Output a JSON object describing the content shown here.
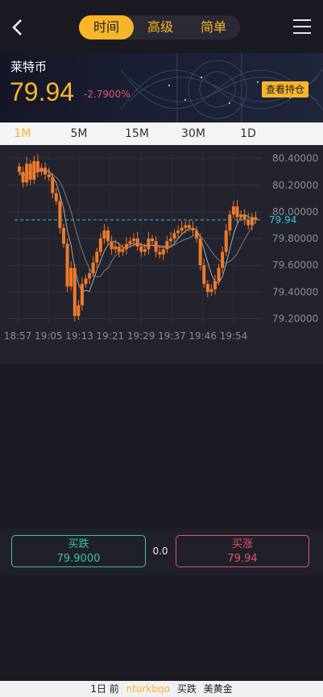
{
  "header": {
    "tabs": [
      {
        "label": "时间",
        "active": true
      },
      {
        "label": "高级",
        "active": false
      },
      {
        "label": "简单",
        "active": false
      }
    ]
  },
  "coin": {
    "name": "莱特币",
    "price": "79.94",
    "change": "-2.7900%",
    "view_button": "查看持仓"
  },
  "intervals": [
    {
      "label": "1M",
      "active": true
    },
    {
      "label": "5M",
      "active": false
    },
    {
      "label": "15M",
      "active": false
    },
    {
      "label": "30M",
      "active": false
    },
    {
      "label": "1D",
      "active": false
    }
  ],
  "chart_data": {
    "type": "candlestick",
    "y_ticks": [
      "80.40000",
      "80.20000",
      "80.00000",
      "79.80000",
      "79.60000",
      "79.40000",
      "79.20000"
    ],
    "ylim": [
      79.16,
      80.44
    ],
    "x_ticks": [
      "18:57",
      "19:05",
      "19:13",
      "19:21",
      "19:29",
      "19:37",
      "19:46",
      "19:54"
    ],
    "current_price_label": "79.94",
    "current_price": 79.94,
    "grid": true,
    "colors": {
      "candle": "#f07a2a",
      "price_line": "#2ec6d4",
      "ma": "#c7c7c7"
    },
    "series": [
      {
        "values": [
          80.3,
          80.22,
          80.36,
          80.24,
          80.38,
          80.3,
          80.33,
          80.28,
          80.26,
          80.14,
          80.08,
          79.88,
          79.76,
          79.44,
          79.58,
          79.22,
          79.3,
          79.46,
          79.5,
          79.54,
          79.62,
          79.7,
          79.8,
          79.86,
          79.78,
          79.72,
          79.74,
          79.7,
          79.72,
          79.76,
          79.78,
          79.8,
          79.74,
          79.7,
          79.72,
          79.8,
          79.78,
          79.7,
          79.68,
          79.72,
          79.78,
          79.8,
          79.84,
          79.86,
          79.88,
          79.9,
          79.88,
          79.86,
          79.8,
          79.6,
          79.46,
          79.4,
          79.42,
          79.48,
          79.58,
          79.7,
          79.86,
          79.98,
          80.04,
          79.96,
          79.98,
          79.94,
          79.9,
          79.96,
          79.94
        ]
      }
    ]
  },
  "trade": {
    "sell": {
      "label": "买跌",
      "value": "79.9000"
    },
    "mid": "0.0",
    "buy": {
      "label": "买涨",
      "value": "79.94"
    }
  },
  "ticker": {
    "time": "1日 前",
    "user": "nturkbqo",
    "action": "买跌",
    "asset": "美黄金"
  }
}
